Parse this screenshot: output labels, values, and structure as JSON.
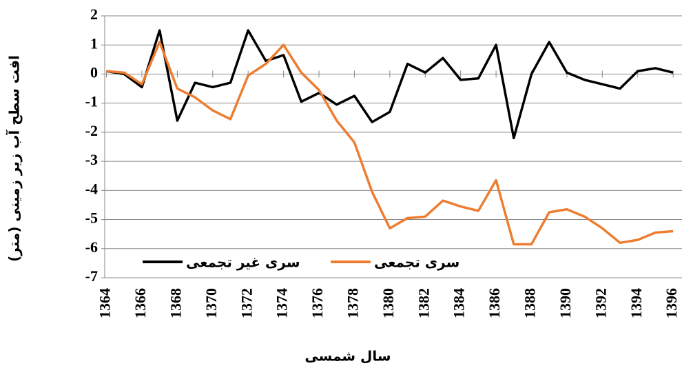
{
  "chart_data": {
    "type": "line",
    "y_label": "افت سطح آب زیر زمینی (متر)",
    "x_label": "سال شمسی",
    "x": [
      1364,
      1365,
      1366,
      1367,
      1368,
      1369,
      1370,
      1371,
      1372,
      1373,
      1374,
      1375,
      1376,
      1377,
      1378,
      1379,
      1380,
      1381,
      1382,
      1383,
      1384,
      1385,
      1386,
      1387,
      1388,
      1389,
      1390,
      1391,
      1392,
      1393,
      1394,
      1395,
      1396
    ],
    "series": [
      {
        "name": "سری غیر تجمعی",
        "color": "#000000",
        "values": [
          0.1,
          0.0,
          -0.45,
          1.5,
          -1.6,
          -0.3,
          -0.45,
          -0.3,
          1.5,
          0.45,
          0.65,
          -0.95,
          -0.65,
          -1.05,
          -0.75,
          -1.65,
          -1.3,
          0.35,
          0.05,
          0.55,
          -0.2,
          -0.15,
          1.0,
          -2.2,
          0.0,
          1.1,
          0.05,
          -0.2,
          -0.35,
          -0.5,
          0.1,
          0.2,
          0.05
        ]
      },
      {
        "name": "سری تجمعی",
        "color": "#ed7d31",
        "values": [
          0.1,
          0.05,
          -0.35,
          1.1,
          -0.5,
          -0.8,
          -1.25,
          -1.55,
          -0.05,
          0.35,
          1.0,
          0.05,
          -0.55,
          -1.6,
          -2.35,
          -4.05,
          -5.3,
          -4.95,
          -4.9,
          -4.35,
          -4.55,
          -4.7,
          -3.65,
          -5.85,
          -5.85,
          -4.75,
          -4.65,
          -4.9,
          -5.3,
          -5.8,
          -5.7,
          -5.45,
          -5.4
        ]
      }
    ],
    "xlim": [
      1363.9,
      1396.5
    ],
    "xticks": [
      1364,
      1366,
      1368,
      1370,
      1372,
      1374,
      1376,
      1378,
      1380,
      1382,
      1384,
      1386,
      1388,
      1390,
      1392,
      1394,
      1396
    ],
    "ylim": [
      -7,
      2
    ],
    "yticks": [
      -7,
      -6,
      -5,
      -4,
      -3,
      -2,
      -1,
      0,
      1,
      2
    ],
    "grid": true
  }
}
